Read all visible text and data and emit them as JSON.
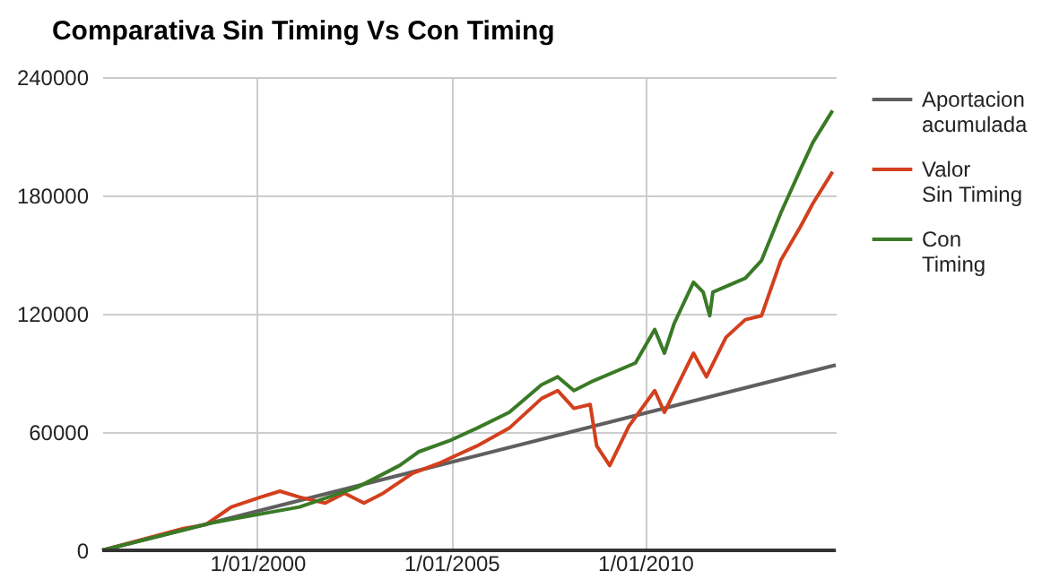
{
  "chart_data": {
    "type": "line",
    "title": "Comparativa Sin Timing Vs Con Timing",
    "xlim": [
      "1996-01",
      "2014-12"
    ],
    "xticks": [
      {
        "value": "2000-01-01",
        "label": "1/01/2000"
      },
      {
        "value": "2005-01-01",
        "label": "1/01/2005"
      },
      {
        "value": "2010-01-01",
        "label": "1/01/2010"
      }
    ],
    "ylim": [
      0,
      240000
    ],
    "yticks": [
      0,
      60000,
      120000,
      180000,
      240000
    ],
    "grid": true,
    "legend": "right",
    "marker": "none",
    "line_style": "solid",
    "series": [
      {
        "name": "Aportacion acumulada",
        "color": "#5f5f5f",
        "x": [
          "1996-01",
          "2014-12"
        ],
        "values": [
          0,
          94000
        ]
      },
      {
        "name": "Valor Sin Timing",
        "color": "#d2401e",
        "x": [
          "1996-01",
          "1998-02",
          "1998-09",
          "1999-05",
          "2000-02",
          "2000-08",
          "2001-02",
          "2001-10",
          "2002-04",
          "2002-10",
          "2003-04",
          "2004-01",
          "2004-09",
          "2005-09",
          "2006-07",
          "2007-05",
          "2007-10",
          "2008-03",
          "2008-08",
          "2008-10",
          "2009-02",
          "2009-08",
          "2010-04",
          "2010-07",
          "2011-04",
          "2011-08",
          "2012-02",
          "2012-08",
          "2013-01",
          "2013-07",
          "2014-01",
          "2014-05",
          "2014-11"
        ],
        "values": [
          0,
          11000,
          13000,
          22000,
          27000,
          30000,
          27000,
          24000,
          29000,
          24000,
          29000,
          39000,
          44000,
          53000,
          62000,
          77000,
          81000,
          72000,
          74000,
          53000,
          43000,
          63000,
          81000,
          70000,
          100000,
          88000,
          108000,
          117000,
          119000,
          147000,
          164000,
          176000,
          192000
        ]
      },
      {
        "name": "Con Timing",
        "color": "#3a7a26",
        "x": [
          "1996-01",
          "1998-11",
          "2001-02",
          "2002-08",
          "2003-09",
          "2004-03",
          "2005-01",
          "2005-09",
          "2006-07",
          "2007-05",
          "2007-10",
          "2008-03",
          "2008-09",
          "2009-10",
          "2010-04",
          "2010-07",
          "2010-10",
          "2011-04",
          "2011-07",
          "2011-09",
          "2011-10",
          "2012-08",
          "2013-01",
          "2013-07",
          "2014-01",
          "2014-05",
          "2014-11"
        ],
        "values": [
          0,
          14000,
          22000,
          32000,
          43000,
          50000,
          56000,
          62000,
          70000,
          84000,
          88000,
          81000,
          86000,
          95000,
          112000,
          100000,
          115000,
          136000,
          131000,
          119000,
          131000,
          138000,
          147000,
          171000,
          193000,
          207000,
          223000
        ]
      }
    ]
  }
}
